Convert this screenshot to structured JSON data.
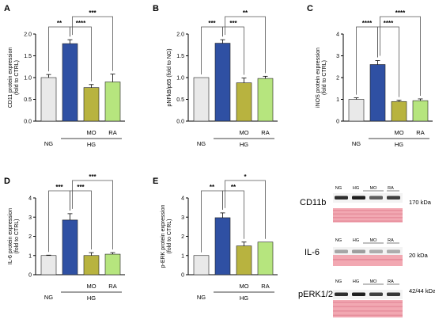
{
  "colors": {
    "NG": "#e9e9e9",
    "HG": "#2f50a3",
    "MO": "#b8b33f",
    "RA": "#b6e57e",
    "outline": "#222222",
    "ponceau": "#f2a8b2",
    "band": "#1e1e1e"
  },
  "chart_data": [
    {
      "type": "bar",
      "panel_letter": "A",
      "ylabel": "CD11 protein expression\n(fold to CTRL)",
      "ylim": [
        0,
        2.0
      ],
      "yticks": [
        "0.0",
        "0.5",
        "1.0",
        "1.5",
        "2.0"
      ],
      "categories": [
        "NG",
        "HG",
        "MO",
        "RA"
      ],
      "group_label": "HG",
      "values": [
        1.0,
        1.78,
        0.77,
        0.9
      ],
      "errors": [
        0.07,
        0.09,
        0.07,
        0.18
      ],
      "sig": [
        {
          "from": 0,
          "to": 1,
          "label": "**"
        },
        {
          "from": 1,
          "to": 2,
          "label": "****"
        },
        {
          "from": 1,
          "to": 3,
          "label": "***"
        }
      ]
    },
    {
      "type": "bar",
      "panel_letter": "B",
      "ylabel": "pNFkB/p65 (fold to NG)",
      "ylim": [
        0,
        2.0
      ],
      "yticks": [
        "0.0",
        "0.5",
        "1.0",
        "1.5",
        "2.0"
      ],
      "categories": [
        "NG",
        "HG",
        "MO",
        "RA"
      ],
      "group_label": "HG",
      "values": [
        1.0,
        1.79,
        0.88,
        0.98
      ],
      "errors": [
        0.0,
        0.08,
        0.11,
        0.05
      ],
      "sig": [
        {
          "from": 0,
          "to": 1,
          "label": "***"
        },
        {
          "from": 1,
          "to": 2,
          "label": "***"
        },
        {
          "from": 1,
          "to": 3,
          "label": "**"
        }
      ]
    },
    {
      "type": "bar",
      "panel_letter": "C",
      "ylabel": "iNOS protein expression\n(fold to CTRL)",
      "ylim": [
        0,
        4
      ],
      "yticks": [
        "0",
        "1",
        "2",
        "3",
        "4"
      ],
      "categories": [
        "NG",
        "HG",
        "MO",
        "RA"
      ],
      "group_label": "HG",
      "values": [
        1.0,
        2.6,
        0.9,
        0.94
      ],
      "errors": [
        0.07,
        0.18,
        0.06,
        0.08
      ],
      "sig": [
        {
          "from": 0,
          "to": 1,
          "label": "****"
        },
        {
          "from": 1,
          "to": 2,
          "label": "****"
        },
        {
          "from": 1,
          "to": 3,
          "label": "****"
        }
      ]
    },
    {
      "type": "bar",
      "panel_letter": "D",
      "ylabel": "IL-6 protein expression\n(fold to CTRL)",
      "ylim": [
        0,
        4
      ],
      "yticks": [
        "0",
        "1",
        "2",
        "3",
        "4"
      ],
      "categories": [
        "NG",
        "HG",
        "MO",
        "RA"
      ],
      "group_label": "HG",
      "values": [
        1.0,
        2.85,
        1.0,
        1.07
      ],
      "errors": [
        0.02,
        0.33,
        0.15,
        0.08
      ],
      "sig": [
        {
          "from": 0,
          "to": 1,
          "label": "***"
        },
        {
          "from": 1,
          "to": 2,
          "label": "***"
        },
        {
          "from": 1,
          "to": 3,
          "label": "***"
        }
      ]
    },
    {
      "type": "bar",
      "panel_letter": "E",
      "ylabel": "p-ERK protein expression\n(fold to CTRL)",
      "ylim": [
        0,
        4
      ],
      "yticks": [
        "0",
        "1",
        "2",
        "3",
        "4"
      ],
      "categories": [
        "NG",
        "HG",
        "MO",
        "RA"
      ],
      "group_label": "HG",
      "values": [
        1.0,
        2.97,
        1.5,
        1.7
      ],
      "errors": [
        0.0,
        0.25,
        0.2,
        0.0
      ],
      "sig": [
        {
          "from": 0,
          "to": 1,
          "label": "**"
        },
        {
          "from": 1,
          "to": 2,
          "label": "**"
        },
        {
          "from": 1,
          "to": 3,
          "label": "*"
        }
      ]
    }
  ],
  "blots": [
    {
      "name": "CD11b",
      "kda": "170 kDa",
      "lanes": [
        "NG",
        "HG",
        "MO",
        "RA"
      ],
      "intensity": [
        0.9,
        1.0,
        0.6,
        0.8
      ]
    },
    {
      "name": "IL-6",
      "kda": "20 kDa",
      "lanes": [
        "NG",
        "HG",
        "MO",
        "RA"
      ],
      "intensity": [
        0.15,
        0.2,
        0.1,
        0.1
      ]
    },
    {
      "name": "pERK1/2",
      "kda": "42/44 kDa",
      "lanes": [
        "NG",
        "HG",
        "MO",
        "RA"
      ],
      "intensity": [
        0.9,
        1.0,
        0.8,
        0.85
      ]
    }
  ]
}
